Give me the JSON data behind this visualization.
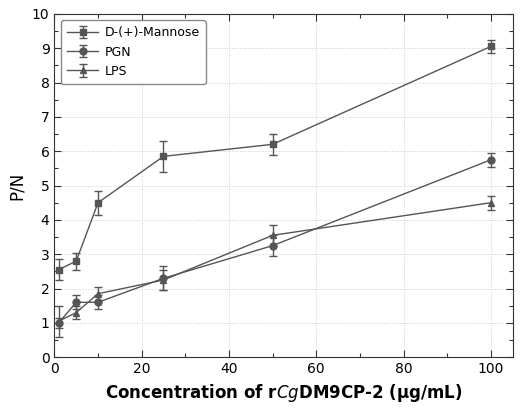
{
  "x": [
    1,
    5,
    10,
    25,
    50,
    100
  ],
  "mannose_y": [
    2.55,
    2.8,
    4.5,
    5.85,
    6.2,
    9.05
  ],
  "mannose_err": [
    0.3,
    0.25,
    0.35,
    0.45,
    0.3,
    0.2
  ],
  "pgn_y": [
    1.0,
    1.6,
    1.6,
    2.3,
    3.25,
    5.75
  ],
  "pgn_err": [
    0.15,
    0.2,
    0.2,
    0.35,
    0.3,
    0.2
  ],
  "lps_y": [
    1.05,
    1.3,
    1.85,
    2.25,
    3.55,
    4.5
  ],
  "lps_err": [
    0.45,
    0.2,
    0.2,
    0.3,
    0.3,
    0.2
  ],
  "xlabel": "Concentration of r$\\it{Cg}$DM9CP-2 (μg/mL)",
  "ylabel": "P/N",
  "xlim": [
    0,
    105
  ],
  "ylim": [
    0,
    10
  ],
  "yticks": [
    0,
    1,
    2,
    3,
    4,
    5,
    6,
    7,
    8,
    9,
    10
  ],
  "xticks": [
    0,
    20,
    40,
    60,
    80,
    100
  ],
  "legend_labels": [
    "D-(+)-Mannose",
    "PGN",
    "LPS"
  ],
  "data_color": "#555555",
  "grid_color": "#cccccc",
  "background_color": "#ffffff",
  "xlabel_fontsize": 12,
  "ylabel_fontsize": 12,
  "tick_fontsize": 10,
  "legend_fontsize": 9
}
